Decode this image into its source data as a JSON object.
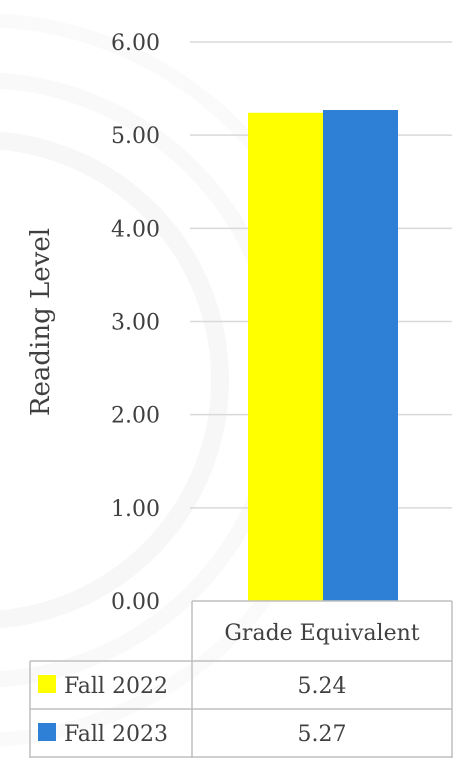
{
  "chart_data": {
    "type": "bar",
    "categories": [
      "Grade Equivalent"
    ],
    "series": [
      {
        "name": "Fall 2022",
        "values": [
          5.24
        ],
        "color": "#FFFF00",
        "value_label": "5.24"
      },
      {
        "name": "Fall 2023",
        "values": [
          5.27
        ],
        "color": "#2E7FD6",
        "value_label": "5.27"
      }
    ],
    "ylabel": "Reading Level",
    "xlabel": "",
    "ylim": [
      0,
      6
    ],
    "yticks": [
      "0.00",
      "1.00",
      "2.00",
      "3.00",
      "4.00",
      "5.00",
      "6.00"
    ],
    "grid": true,
    "legend": "data-table",
    "colors": {
      "grid": "#d9d9d9",
      "text": "#404040",
      "table_border": "#bfbfbf"
    }
  }
}
